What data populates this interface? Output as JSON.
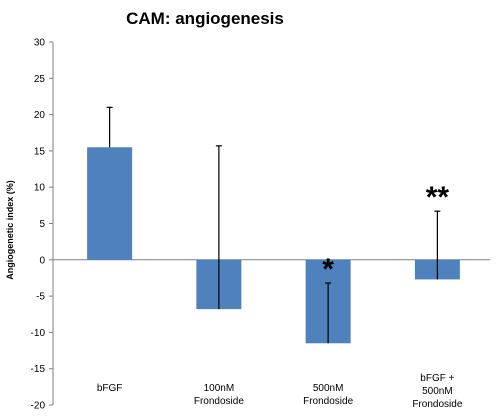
{
  "chart_data": {
    "type": "bar",
    "title": "CAM: angiogenesis",
    "xlabel": "",
    "ylabel": "Angiogenetic index (%)",
    "ylim": [
      -20,
      30
    ],
    "yticks": [
      30,
      25,
      20,
      15,
      10,
      5,
      0,
      -5,
      -10,
      -15,
      -20
    ],
    "grid": false,
    "legend": "none",
    "bar_color": "#4F81BD",
    "categories": [
      [
        "bFGF"
      ],
      [
        "100nM",
        "Frondoside"
      ],
      [
        "500nM",
        "Frondoside"
      ],
      [
        "bFGF +",
        "500nM",
        "Frondoside"
      ]
    ],
    "values": [
      15.5,
      -6.8,
      -11.5,
      -2.7
    ],
    "error_upper": [
      5.5,
      22.5,
      8.3,
      9.4
    ],
    "error_lower": [
      0,
      0,
      0,
      0
    ],
    "annotations": [
      "",
      "",
      "*",
      "**"
    ]
  }
}
